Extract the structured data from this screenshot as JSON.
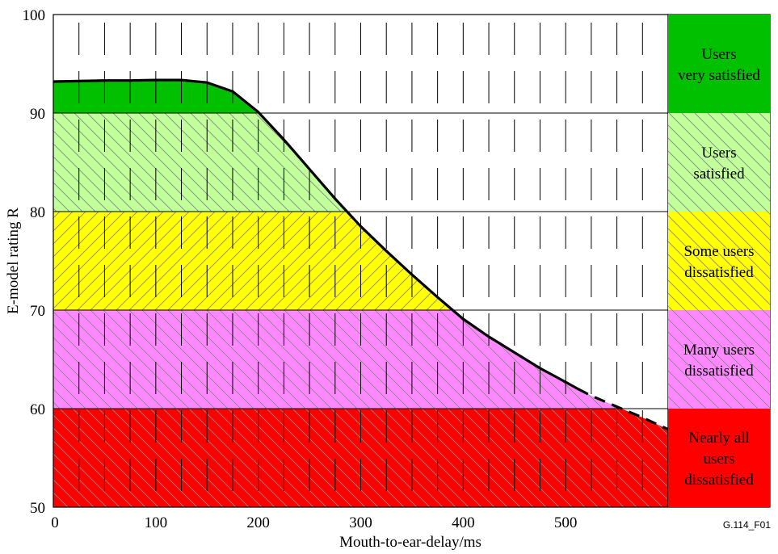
{
  "figure_code": "G.114_F01",
  "chart_data": {
    "type": "line",
    "xlabel": "Mouth-to-ear-delay/ms",
    "ylabel": "E-model rating R",
    "xlim": [
      0,
      600
    ],
    "ylim": [
      50,
      100
    ],
    "x_ticks": [
      0,
      100,
      200,
      300,
      400,
      500
    ],
    "y_ticks": [
      50,
      60,
      70,
      80,
      90,
      100
    ],
    "grid": "horizontal lines at 10 R intervals, dashed vertical lines every 25 ms",
    "bands": [
      {
        "from": 90,
        "to": 100,
        "label_lines": [
          "Users",
          "very satisfied"
        ],
        "color": "#00c000"
      },
      {
        "from": 80,
        "to": 90,
        "label_lines": [
          "Users",
          "satisfied"
        ],
        "color": "#c0ff99"
      },
      {
        "from": 70,
        "to": 80,
        "label_lines": [
          "Some users",
          "dissatisfied"
        ],
        "color": "#ffff00"
      },
      {
        "from": 60,
        "to": 70,
        "label_lines": [
          "Many users",
          "dissatisfied"
        ],
        "color": "#ff88ff"
      },
      {
        "from": 50,
        "to": 60,
        "label_lines": [
          "Nearly all",
          "users",
          "dissatisfied"
        ],
        "color": "#ff0000"
      }
    ],
    "series": [
      {
        "style": "solid",
        "x": [
          0,
          25,
          50,
          75,
          100,
          125,
          150,
          175,
          200,
          225,
          250,
          275,
          300,
          325,
          350,
          375,
          400,
          425,
          450,
          475,
          500,
          512
        ],
        "y": [
          93.2,
          93.25,
          93.3,
          93.3,
          93.35,
          93.35,
          93.1,
          92.2,
          90.1,
          87.3,
          84.3,
          81.3,
          78.5,
          76.0,
          73.6,
          71.3,
          69.1,
          67.3,
          65.7,
          64.1,
          62.7,
          62.0
        ]
      },
      {
        "style": "dashed",
        "x": [
          512,
          525,
          550,
          575,
          600
        ],
        "y": [
          62.0,
          61.3,
          60.2,
          59.1,
          57.9
        ]
      }
    ]
  }
}
